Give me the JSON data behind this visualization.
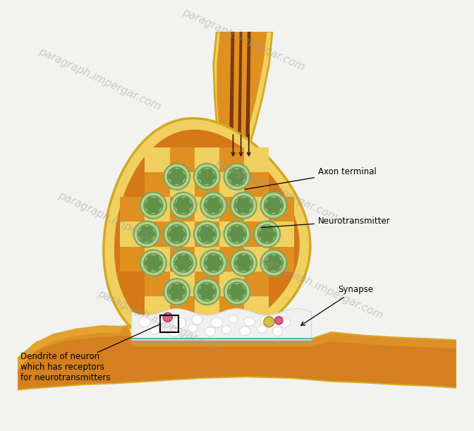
{
  "bg_color": "#f2f2f0",
  "golden_outer": "#d4a820",
  "golden_mid": "#e8c040",
  "golden_light": "#f0d060",
  "orange_fill": "#e09020",
  "orange_inner": "#d47818",
  "brown_dark": "#7a3810",
  "brown_mid": "#a05020",
  "vesicle_bg": "#b8d090",
  "vesicle_ring": "#78a858",
  "vesicle_inner": "#90c070",
  "vesicle_dot": "#60904a",
  "synapse_white": "#f0f0f0",
  "cleft_teal": "#50b8b0",
  "receptor_pink": "#e06080",
  "receptor_yellow": "#d4c040",
  "dendrite_orange": "#d48020",
  "dendrite_gold": "#e8a030",
  "label_axon": "Axon terminal",
  "label_neuro": "Neurotransmitter",
  "label_synapse": "Synapse",
  "label_dendrite": "Dendrite of neuron\nwhich has receptors\nfor neurotransmitters",
  "watermark": "paragraph.impergar.com",
  "label_fs": 8.5,
  "wm_fs": 11,
  "wm_alpha": 0.45
}
